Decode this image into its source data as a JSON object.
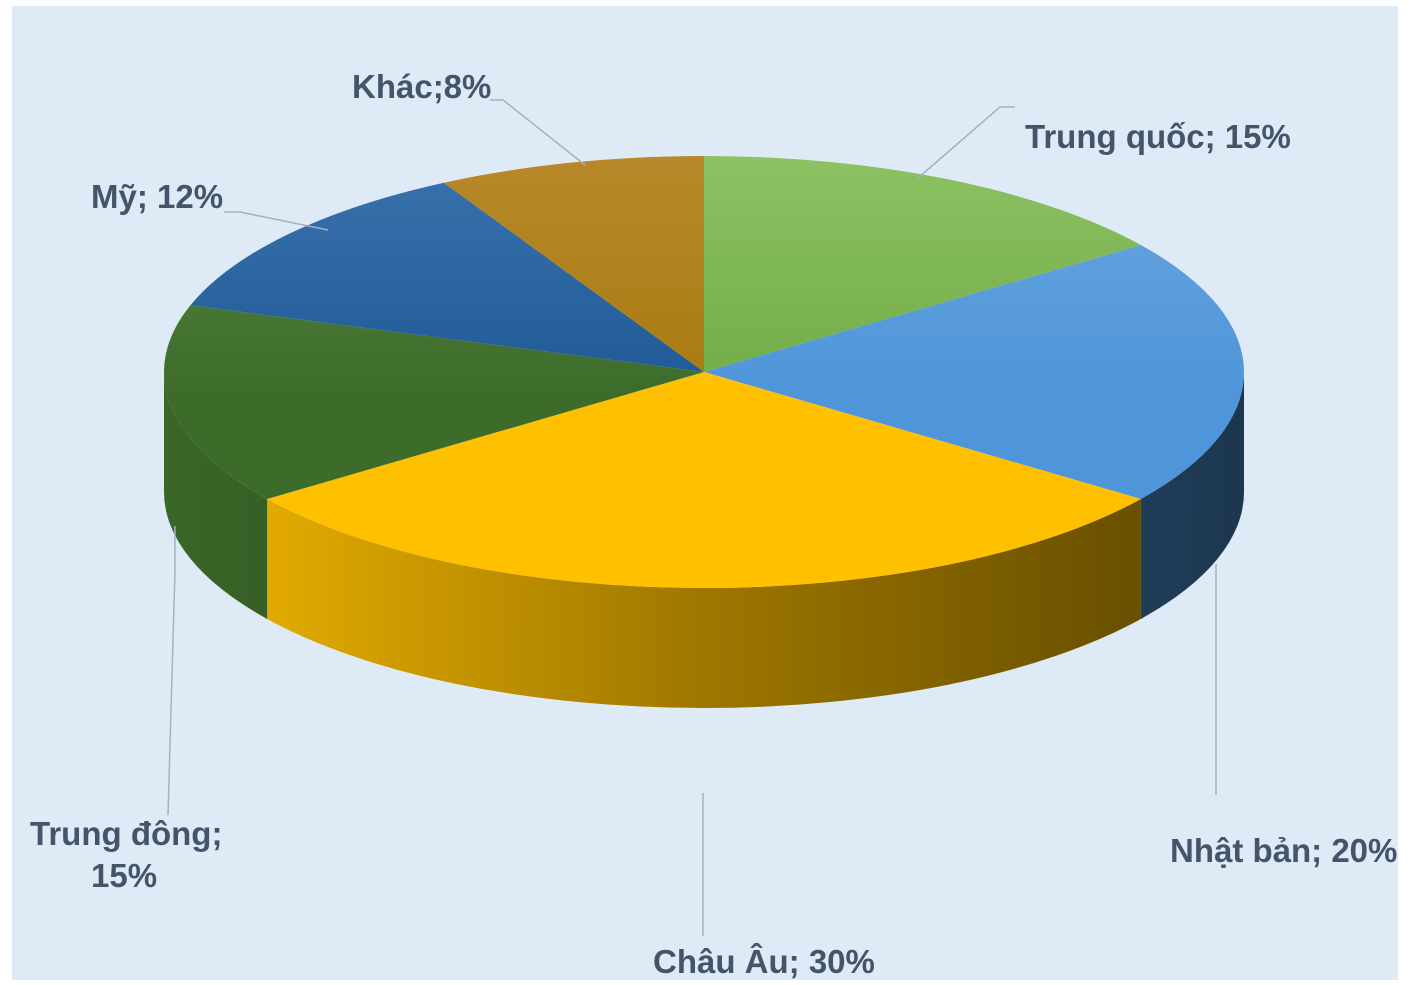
{
  "chart_data": {
    "type": "pie",
    "style": "3d",
    "slices": [
      {
        "label": "Trung quốc; 15%",
        "name": "Trung quốc",
        "value": 15,
        "top": "#70ad47",
        "topLight": "#8dc163",
        "side": "#4f7a32"
      },
      {
        "label": "Nhật bản; 20%",
        "name": "Nhật bản",
        "value": 20,
        "top": "#4e95d9",
        "topLight": "#6ba6de",
        "side": "#1f3a5a"
      },
      {
        "label": "Châu Âu; 30%",
        "name": "Châu Âu",
        "value": 30,
        "top": "#ffc000",
        "topLight": "#ffd24d",
        "side": "#b08600"
      },
      {
        "label": "Trung đông; 15%",
        "name": "Trung đông",
        "value": 15,
        "top": "#3d6b2a",
        "topLight": "#5a8a45",
        "side": "#2c4d1d"
      },
      {
        "label": "Mỹ; 12%",
        "name": "Mỹ",
        "value": 12,
        "top": "#1f5a96",
        "topLight": "#3a72ad",
        "side": "#15406b"
      },
      {
        "label": "Khác;8%",
        "name": "Khác",
        "value": 8,
        "top": "#a87a10",
        "topLight": "#b8892a",
        "side": "#7a5808"
      }
    ],
    "labels": {
      "trung_quoc": "Trung quốc; 15%",
      "nhat_ban": "Nhật bản; 20%",
      "chau_au": "Châu Âu; 30%",
      "trung_dong_1": "Trung đông;",
      "trung_dong_2": "15%",
      "my": "Mỹ; 12%",
      "khac": "Khác;8%"
    },
    "colors": {
      "background": "#deeaf6",
      "label_text": "#44546a",
      "leader": "#a5b1bf"
    }
  }
}
